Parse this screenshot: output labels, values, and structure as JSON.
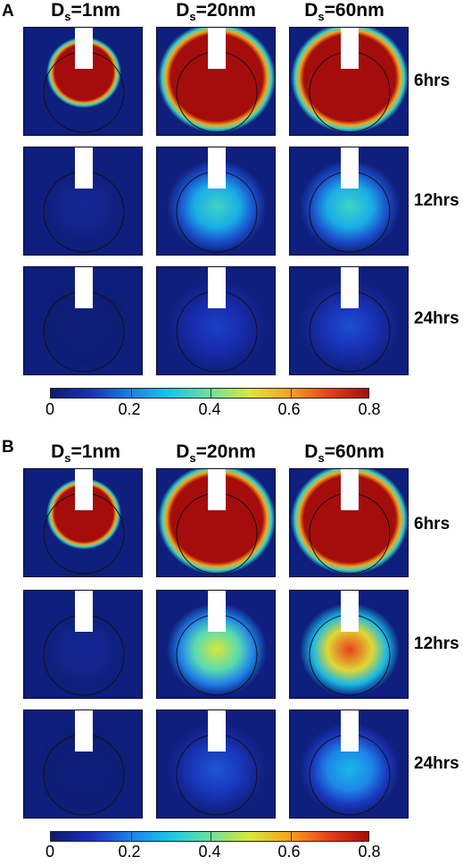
{
  "colorbar_gradient": [
    "#0d1b6e",
    "#1930b8",
    "#1e7fe8",
    "#16c8e6",
    "#6de0a0",
    "#d8e83a",
    "#f5a51e",
    "#e8401a",
    "#a50d0d"
  ],
  "panels": [
    {
      "letter": "A",
      "columns": [
        {
          "prefix": "D",
          "sub": "s",
          "suffix": "=1nm"
        },
        {
          "prefix": "D",
          "sub": "s",
          "suffix": "=20nm"
        },
        {
          "prefix": "D",
          "sub": "s",
          "suffix": "=60nm"
        }
      ],
      "rows": [
        "6hrs",
        "12hrs",
        "24hrs"
      ],
      "colorbar": {
        "ticks": [
          "0",
          "0.2",
          "0.4",
          "0.6",
          "0.8"
        ]
      },
      "levels": [
        [
          0.8,
          0.8,
          0.8
        ],
        [
          0.05,
          0.35,
          0.35
        ],
        [
          0.02,
          0.12,
          0.14
        ]
      ]
    },
    {
      "letter": "B",
      "columns": [
        {
          "prefix": "D",
          "sub": "s",
          "suffix": "=1nm"
        },
        {
          "prefix": "D",
          "sub": "s",
          "suffix": "=20nm"
        },
        {
          "prefix": "D",
          "sub": "s",
          "suffix": "=60nm"
        }
      ],
      "rows": [
        "6hrs",
        "12hrs",
        "24hrs"
      ],
      "colorbar": {
        "ticks": [
          "0",
          "0.2",
          "0.4",
          "0.6",
          "0.8"
        ]
      },
      "levels": [
        [
          0.8,
          0.8,
          0.8
        ],
        [
          0.05,
          0.5,
          0.7
        ],
        [
          0.02,
          0.15,
          0.28
        ]
      ]
    }
  ]
}
